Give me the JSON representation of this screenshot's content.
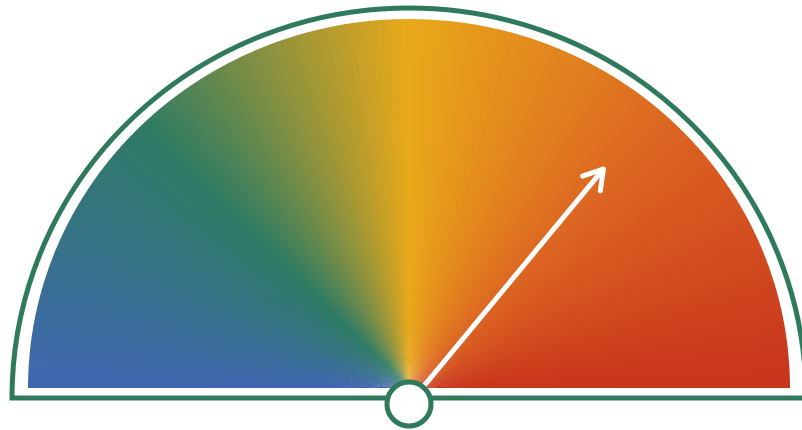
{
  "gauge": {
    "value_fraction": 0.72,
    "colors": {
      "outline": "#2f7a5c",
      "needle": "#ffffff",
      "hub_fill": "#ffffff",
      "hub_stroke": "#2f7a5c",
      "gradient": [
        "#3f67b0",
        "#2e7b63",
        "#e9a81a",
        "#dc6522",
        "#c7331c"
      ]
    },
    "icons": {
      "pointer": "arrow-needle-icon",
      "hub": "gauge-hub-icon"
    }
  }
}
